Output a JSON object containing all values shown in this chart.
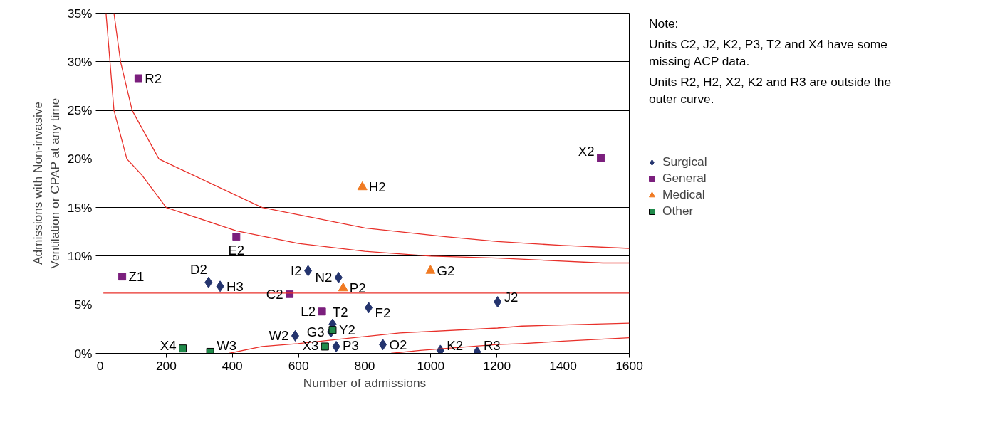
{
  "chart_data": {
    "type": "scatter",
    "xlabel": "Number of admissions",
    "ylabel": "Admissions with Non-invasive\nVentilation or CPAP at any time",
    "xlim": [
      0,
      1600
    ],
    "xticks": [
      0,
      200,
      400,
      600,
      800,
      1000,
      1200,
      1400,
      1600
    ],
    "ylim": [
      0,
      35
    ],
    "yticks": [
      {
        "value": 0,
        "label": "0%"
      },
      {
        "value": 5,
        "label": "5%"
      },
      {
        "value": 10,
        "label": "10%"
      },
      {
        "value": 15,
        "label": "15%"
      },
      {
        "value": 20,
        "label": "20%"
      },
      {
        "value": 25,
        "label": "25%"
      },
      {
        "value": 30,
        "label": "30%"
      },
      {
        "value": 35,
        "label": "35%"
      }
    ],
    "grid": "y",
    "legend": "right",
    "series": [
      {
        "name": "Surgical",
        "color": "#24346e",
        "marker": "diamond",
        "x": [
          328,
          363,
          629,
          721,
          812,
          1202,
          590,
          703,
          698,
          714,
          855,
          1029,
          1140
        ],
        "values": [
          7.3,
          6.9,
          8.5,
          7.8,
          4.7,
          5.3,
          1.8,
          3.0,
          2.2,
          0.7,
          0.9,
          0.3,
          0.15
        ],
        "value_labels": [
          "D2",
          "H3",
          "I2",
          "N2",
          "F2",
          "J2",
          "W2",
          "T2",
          "G3",
          "P3",
          "O2",
          "K2",
          "R3"
        ]
      },
      {
        "name": "General",
        "color": "#7b1f7d",
        "marker": "square",
        "x": [
          116,
          1514,
          412,
          67,
          573,
          671
        ],
        "values": [
          28.3,
          20.1,
          12.0,
          7.9,
          6.1,
          4.3
        ],
        "value_labels": [
          "R2",
          "X2",
          "E2",
          "Z1",
          "C2",
          "L2"
        ]
      },
      {
        "name": "Medical",
        "color": "#f07a22",
        "marker": "triangle",
        "x": [
          793,
          999,
          735
        ],
        "values": [
          17.1,
          8.5,
          6.7
        ],
        "value_labels": [
          "H2",
          "G2",
          "P2"
        ]
      },
      {
        "name": "Other",
        "color": "#1f8a4a",
        "marker": "square",
        "x": [
          250,
          333,
          703,
          680
        ],
        "values": [
          0.5,
          0.15,
          2.4,
          0.7
        ],
        "value_labels": [
          "X4",
          "W3",
          "Y2",
          "X3"
        ]
      },
      {
        "type": "line",
        "color": "#e8302a",
        "x": [
          10,
          1600
        ],
        "values": [
          6.2,
          6.2
        ]
      },
      {
        "type": "line",
        "color": "#e8302a",
        "x": [
          42,
          62,
          97,
          178,
          277,
          490,
          800,
          1045,
          1202,
          1399,
          1600
        ],
        "values": [
          35,
          30,
          25,
          20,
          18.4,
          15,
          12.9,
          12.0,
          11.5,
          11.1,
          10.8
        ]
      },
      {
        "type": "line",
        "color": "#e8302a",
        "x": [
          18,
          30,
          42,
          81,
          125,
          200,
          412,
          600,
          800,
          1000,
          1202,
          1520,
          1600
        ],
        "values": [
          35,
          30,
          25,
          20,
          18.4,
          15,
          12.6,
          11.3,
          10.5,
          10.0,
          9.8,
          9.3,
          9.3
        ]
      },
      {
        "type": "line",
        "color": "#e8302a",
        "x": [
          390,
          490,
          598,
          906,
          1202,
          1276,
          1600
        ],
        "values": [
          0,
          0.7,
          1.0,
          2.1,
          2.6,
          2.8,
          3.1
        ]
      },
      {
        "type": "line",
        "color": "#e8302a",
        "x": [
          880,
          968,
          1200,
          1276,
          1400,
          1600
        ],
        "values": [
          0,
          0.3,
          0.9,
          1.0,
          1.25,
          1.6
        ]
      }
    ],
    "annotations": [
      "Note:",
      "Units C2, J2, K2, P3, T2 and X4 have some\nmissing ACP data.",
      "Units R2, H2, X2, K2 and R3 are outside the\nouter curve."
    ]
  }
}
